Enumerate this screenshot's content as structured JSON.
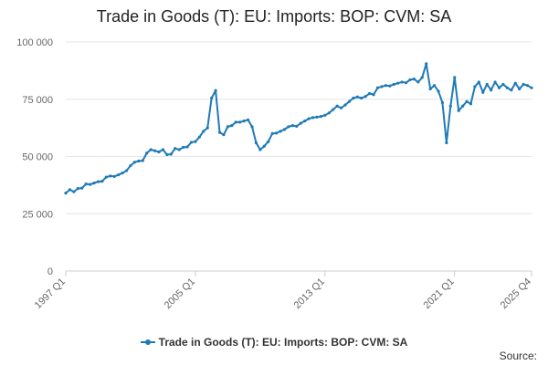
{
  "chart_data": {
    "type": "line",
    "title": "Trade in Goods (T): EU: Imports: BOP: CVM: SA",
    "x_tick_labels": [
      "1997 Q1",
      "2005 Q1",
      "2013 Q1",
      "2021 Q1",
      "2025 Q4"
    ],
    "x_range": [
      "1997 Q1",
      "2025 Q4"
    ],
    "y_tick_labels": [
      "0",
      "25 000",
      "50 000",
      "75 000",
      "100 000"
    ],
    "y_ticks": [
      0,
      25000,
      50000,
      75000,
      100000
    ],
    "ylim": [
      0,
      100000
    ],
    "grid": true,
    "legend_position": "bottom",
    "series": [
      {
        "name": "Trade in Goods (T): EU: Imports: BOP: CVM: SA",
        "color": "#1f7ab8",
        "quarters": [
          "1997 Q1",
          "1997 Q2",
          "1997 Q3",
          "1997 Q4",
          "1998 Q1",
          "1998 Q2",
          "1998 Q3",
          "1998 Q4",
          "1999 Q1",
          "1999 Q2",
          "1999 Q3",
          "1999 Q4",
          "2000 Q1",
          "2000 Q2",
          "2000 Q3",
          "2000 Q4",
          "2001 Q1",
          "2001 Q2",
          "2001 Q3",
          "2001 Q4",
          "2002 Q1",
          "2002 Q2",
          "2002 Q3",
          "2002 Q4",
          "2003 Q1",
          "2003 Q2",
          "2003 Q3",
          "2003 Q4",
          "2004 Q1",
          "2004 Q2",
          "2004 Q3",
          "2004 Q4",
          "2005 Q1",
          "2005 Q2",
          "2005 Q3",
          "2005 Q4",
          "2006 Q1",
          "2006 Q2",
          "2006 Q3",
          "2006 Q4",
          "2007 Q1",
          "2007 Q2",
          "2007 Q3",
          "2007 Q4",
          "2008 Q1",
          "2008 Q2",
          "2008 Q3",
          "2008 Q4",
          "2009 Q1",
          "2009 Q2",
          "2009 Q3",
          "2009 Q4",
          "2010 Q1",
          "2010 Q2",
          "2010 Q3",
          "2010 Q4",
          "2011 Q1",
          "2011 Q2",
          "2011 Q3",
          "2011 Q4",
          "2012 Q1",
          "2012 Q2",
          "2012 Q3",
          "2012 Q4",
          "2013 Q1",
          "2013 Q2",
          "2013 Q3",
          "2013 Q4",
          "2014 Q1",
          "2014 Q2",
          "2014 Q3",
          "2014 Q4",
          "2015 Q1",
          "2015 Q2",
          "2015 Q3",
          "2015 Q4",
          "2016 Q1",
          "2016 Q2",
          "2016 Q3",
          "2016 Q4",
          "2017 Q1",
          "2017 Q2",
          "2017 Q3",
          "2017 Q4",
          "2018 Q1",
          "2018 Q2",
          "2018 Q3",
          "2018 Q4",
          "2019 Q1",
          "2019 Q2",
          "2019 Q3",
          "2019 Q4",
          "2020 Q1",
          "2020 Q2",
          "2020 Q3",
          "2020 Q4",
          "2021 Q1",
          "2021 Q2",
          "2021 Q3",
          "2021 Q4",
          "2022 Q1",
          "2022 Q2",
          "2022 Q3",
          "2022 Q4",
          "2023 Q1",
          "2023 Q2",
          "2023 Q3",
          "2023 Q4",
          "2024 Q1",
          "2024 Q2",
          "2024 Q3",
          "2024 Q4",
          "2025 Q1",
          "2025 Q2",
          "2025 Q3",
          "2025 Q4"
        ],
        "values": [
          34000,
          35500,
          34600,
          36000,
          36200,
          38000,
          37800,
          38400,
          39000,
          39200,
          41000,
          41500,
          41300,
          42000,
          42800,
          43800,
          46000,
          47500,
          48000,
          48200,
          51500,
          53000,
          52500,
          52000,
          53000,
          50800,
          51000,
          53500,
          53000,
          54000,
          54200,
          56200,
          56500,
          58500,
          61000,
          62500,
          75500,
          78800,
          60500,
          59500,
          63000,
          63500,
          65000,
          65000,
          65500,
          66000,
          63000,
          56000,
          53000,
          54500,
          56500,
          60000,
          60200,
          61000,
          61800,
          63000,
          63500,
          63200,
          64500,
          65500,
          66500,
          67000,
          67200,
          67500,
          68000,
          69000,
          70500,
          72000,
          71200,
          72500,
          74000,
          75500,
          76000,
          75500,
          76200,
          77500,
          77000,
          80000,
          80500,
          81000,
          80800,
          81500,
          82000,
          82500,
          82200,
          83500,
          83800,
          82500,
          84500,
          90500,
          79500,
          81000,
          78500,
          73500,
          56000,
          72000,
          84500,
          70000,
          72000,
          74000,
          73000,
          80500,
          82500,
          78000,
          81500,
          79000,
          82500,
          80000,
          81500,
          80000,
          79000,
          82000,
          79500,
          81500,
          81000,
          80000
        ]
      }
    ]
  },
  "legend": {
    "label": "Trade in Goods (T): EU: Imports: BOP: CVM: SA"
  },
  "footer": {
    "source_label": "Source:"
  }
}
